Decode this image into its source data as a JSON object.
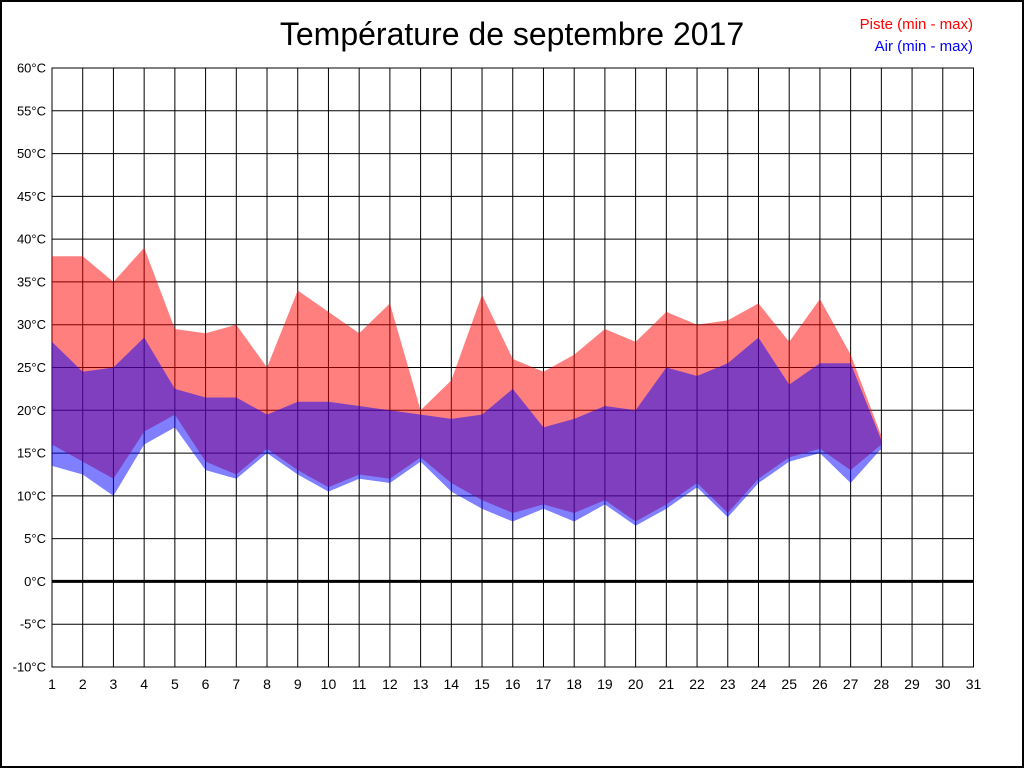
{
  "title": "Température de septembre 2017",
  "legend": [
    {
      "label": "Piste (min - max)",
      "color": "#ff0000"
    },
    {
      "label": "Air (min - max)",
      "color": "#0000ff"
    }
  ],
  "chart_data": {
    "type": "area",
    "title": "Température de septembre 2017",
    "xlabel": "",
    "ylabel": "",
    "grid": true,
    "legend_position": "top-right",
    "xlim": [
      1,
      31
    ],
    "ylim": [
      -10,
      60
    ],
    "x_tick_labels": [
      "1",
      "2",
      "3",
      "4",
      "5",
      "6",
      "7",
      "8",
      "9",
      "10",
      "11",
      "12",
      "13",
      "14",
      "15",
      "16",
      "17",
      "18",
      "19",
      "20",
      "21",
      "22",
      "23",
      "24",
      "25",
      "26",
      "27",
      "28",
      "29",
      "30",
      "31"
    ],
    "y_tick_values": [
      60,
      55,
      50,
      45,
      40,
      35,
      30,
      25,
      20,
      15,
      10,
      5,
      0,
      -5,
      -10
    ],
    "y_tick_labels": [
      "60°C",
      "55°C",
      "50°C",
      "45°C",
      "40°C",
      "35°C",
      "30°C",
      "25°C",
      "20°C",
      "15°C",
      "10°C",
      "5°C",
      "0°C",
      "-5°C",
      "-10°C"
    ],
    "zero_line": 0,
    "x": [
      1,
      2,
      3,
      4,
      5,
      6,
      7,
      8,
      9,
      10,
      11,
      12,
      13,
      14,
      15,
      16,
      17,
      18,
      19,
      20,
      21,
      22,
      23,
      24,
      25,
      26,
      27,
      28
    ],
    "series": [
      {
        "name": "Piste (min - max)",
        "data_name": "piste-band",
        "color": "#ff0000",
        "opacity": 0.5,
        "max": [
          38,
          38,
          35,
          39,
          29.5,
          29,
          30,
          25,
          34,
          31.5,
          29,
          32.5,
          20,
          23.5,
          33.5,
          26,
          24.5,
          26.5,
          29.5,
          28,
          31.5,
          30,
          30.5,
          32.5,
          28,
          33,
          26.5,
          17
        ],
        "min": [
          16,
          14,
          12,
          17.5,
          19.5,
          14,
          12.5,
          15.5,
          13,
          11,
          12.5,
          12,
          14.5,
          11.5,
          9.5,
          8,
          9,
          8,
          9.5,
          7,
          9,
          11.5,
          8,
          12,
          14.5,
          15.5,
          13,
          16
        ]
      },
      {
        "name": "Air (min - max)",
        "data_name": "air-band",
        "color": "#0000ff",
        "opacity": 0.5,
        "max": [
          28,
          24.5,
          25,
          28.5,
          22.5,
          21.5,
          21.5,
          19.5,
          21,
          21,
          20.5,
          20,
          19.5,
          19,
          19.5,
          22.5,
          18,
          19,
          20.5,
          20,
          25,
          24,
          25.5,
          28.5,
          23,
          25.5,
          25.5,
          16.5
        ],
        "min": [
          13.5,
          12.5,
          10,
          16,
          18,
          13,
          12,
          15,
          12.5,
          10.5,
          12,
          11.5,
          14,
          10.5,
          8.5,
          7,
          8.5,
          7,
          9,
          6.5,
          8.5,
          11,
          7.5,
          11.5,
          14,
          15,
          11.5,
          15.5
        ]
      }
    ]
  }
}
